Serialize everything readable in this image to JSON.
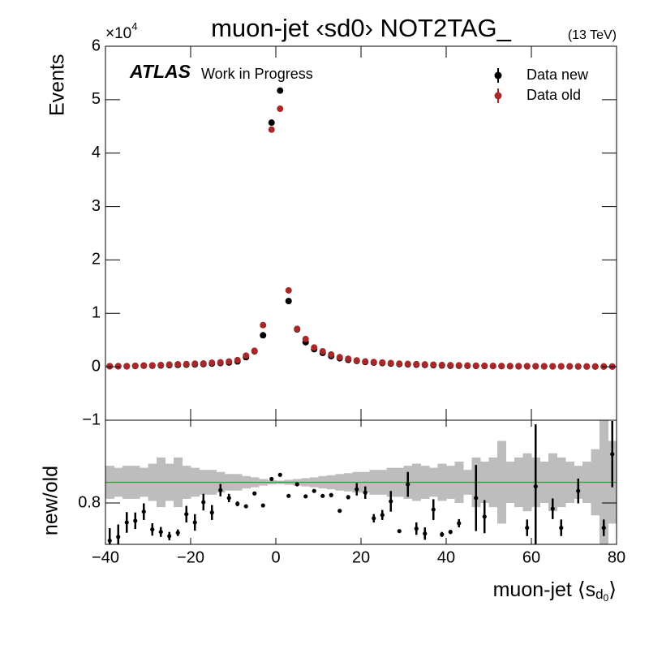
{
  "chart_data": [
    {
      "type": "scatter",
      "title": "muon-jet ‹sd0› NOT2TAG_",
      "energy_label": "(13 TeV)",
      "experiment": "ATLAS",
      "status": "Work in Progress",
      "y_label": "Events",
      "y_multiplier": {
        "base": "×10",
        "exponent": "4"
      },
      "legend": "top-right",
      "x": [
        -39,
        -37,
        -35,
        -33,
        -31,
        -29,
        -27,
        -25,
        -23,
        -21,
        -19,
        -17,
        -15,
        -13,
        -11,
        -9,
        -7,
        -5,
        -3,
        -1,
        1,
        3,
        5,
        7,
        9,
        11,
        13,
        15,
        17,
        19,
        21,
        23,
        25,
        27,
        29,
        31,
        33,
        35,
        37,
        39,
        41,
        43,
        45,
        47,
        49,
        51,
        53,
        55,
        57,
        59,
        61,
        63,
        65,
        67,
        69,
        71,
        73,
        75,
        77,
        79
      ],
      "series": [
        {
          "name": "Data new",
          "color": "#000000",
          "values": [
            0.01,
            0.01,
            0.01,
            0.015,
            0.02,
            0.02,
            0.025,
            0.03,
            0.035,
            0.04,
            0.045,
            0.05,
            0.06,
            0.07,
            0.08,
            0.1,
            0.18,
            0.29,
            0.59,
            4.57,
            5.17,
            1.23,
            0.7,
            0.46,
            0.33,
            0.26,
            0.2,
            0.16,
            0.13,
            0.11,
            0.09,
            0.08,
            0.07,
            0.06,
            0.05,
            0.045,
            0.04,
            0.035,
            0.03,
            0.025,
            0.02,
            0.02,
            0.018,
            0.016,
            0.015,
            0.014,
            0.012,
            0.011,
            0.01,
            0.01,
            0.009,
            0.008,
            0.008,
            0.007,
            0.007,
            0.006,
            0.006,
            0.005,
            0.005,
            0.005
          ]
        },
        {
          "name": "Data old",
          "color": "#a8282a",
          "values": [
            0.012,
            0.013,
            0.013,
            0.02,
            0.025,
            0.027,
            0.034,
            0.042,
            0.048,
            0.052,
            0.06,
            0.062,
            0.077,
            0.084,
            0.099,
            0.125,
            0.21,
            0.3,
            0.78,
            4.44,
            4.83,
            1.43,
            0.71,
            0.52,
            0.36,
            0.29,
            0.23,
            0.18,
            0.15,
            0.12,
            0.1,
            0.09,
            0.08,
            0.07,
            0.06,
            0.055,
            0.05,
            0.045,
            0.04,
            0.035,
            0.03,
            0.028,
            0.025,
            0.022,
            0.02,
            0.018,
            0.016,
            0.015,
            0.014,
            0.013,
            0.012,
            0.011,
            0.01,
            0.01,
            0.009,
            0.008,
            0.008,
            0.007,
            0.007,
            0.006
          ]
        }
      ],
      "xlim": [
        -40,
        80
      ],
      "xticks": [
        -40,
        -20,
        0,
        20,
        40,
        60,
        80
      ],
      "ylim": [
        -1,
        6
      ],
      "yticks": [
        {
          "value": -1,
          "label": "−1"
        },
        0,
        1,
        2,
        3,
        4,
        5,
        6
      ]
    },
    {
      "type": "ratio",
      "y_label": "new/old",
      "x_label": {
        "text": "muon-jet ⟨s",
        "sub": "d",
        "subsub": "0",
        "end": "⟩"
      },
      "x": [
        -39,
        -37,
        -35,
        -33,
        -31,
        -29,
        -27,
        -25,
        -23,
        -21,
        -19,
        -17,
        -15,
        -13,
        -11,
        -9,
        -7,
        -5,
        -3,
        -1,
        1,
        3,
        5,
        7,
        9,
        11,
        13,
        15,
        17,
        19,
        21,
        23,
        25,
        27,
        29,
        31,
        33,
        35,
        37,
        39,
        41,
        43,
        45,
        47,
        49,
        51,
        53,
        55,
        57,
        59,
        61,
        63,
        65,
        67,
        69,
        71,
        73,
        75,
        77,
        79
      ],
      "values": [
        0.709,
        0.718,
        0.753,
        0.757,
        0.779,
        0.736,
        0.73,
        0.72,
        0.728,
        0.773,
        0.753,
        0.802,
        0.777,
        0.831,
        0.812,
        0.798,
        0.792,
        0.823,
        0.794,
        0.858,
        0.868,
        0.817,
        0.845,
        0.816,
        0.829,
        0.817,
        0.819,
        0.781,
        0.814,
        0.833,
        0.825,
        0.763,
        0.771,
        0.804,
        0.732,
        0.845,
        0.738,
        0.726,
        0.784,
        0.724,
        0.73,
        0.751,
        null,
        0.812,
        0.767,
        null,
        null,
        null,
        null,
        0.74,
        0.84,
        null,
        0.786,
        0.74,
        null,
        0.829,
        null,
        null,
        0.74,
        0.918
      ],
      "errors": [
        0.03,
        0.03,
        0.025,
        0.02,
        0.02,
        0.015,
        0.012,
        0.01,
        0.008,
        0.02,
        0.02,
        0.02,
        0.018,
        0.015,
        0.01,
        0.006,
        0.004,
        0.004,
        0.003,
        0.002,
        0.002,
        0.002,
        0.003,
        0.003,
        0.004,
        0.004,
        0.005,
        0.003,
        0.005,
        0.015,
        0.015,
        0.01,
        0.012,
        0.025,
        0.004,
        0.03,
        0.015,
        0.015,
        0.025,
        0.006,
        0.005,
        0.01,
        null,
        0.08,
        0.04,
        null,
        null,
        null,
        null,
        0.02,
        0.15,
        null,
        0.025,
        0.02,
        null,
        0.03,
        null,
        null,
        0.02,
        0.08
      ],
      "color": "#000000",
      "band": [
        0.04,
        0.035,
        0.04,
        0.04,
        0.035,
        0.045,
        0.06,
        0.045,
        0.06,
        0.04,
        0.035,
        0.03,
        0.03,
        0.025,
        0.02,
        0.02,
        0.015,
        0.012,
        0.008,
        0.005,
        0.004,
        0.006,
        0.008,
        0.01,
        0.012,
        0.015,
        0.017,
        0.02,
        0.022,
        0.025,
        0.025,
        0.03,
        0.03,
        0.035,
        0.035,
        0.04,
        0.045,
        0.04,
        0.035,
        0.045,
        0.04,
        0.05,
        0.03,
        0.06,
        0.05,
        0.06,
        0.1,
        0.05,
        0.06,
        0.07,
        0.06,
        0.05,
        0.07,
        0.06,
        0.05,
        0.04,
        0.05,
        0.08,
        0.15,
        0.1
      ],
      "band_color": "#bdbdbd",
      "reference_line": 0.85,
      "reference_color": "#33a02c",
      "xlim": [
        -40,
        80
      ],
      "xticks": [
        {
          "value": -40,
          "label": "−40"
        },
        {
          "value": -20,
          "label": "−20"
        },
        0,
        20,
        40,
        60,
        80
      ],
      "ylim": [
        0.7,
        1.0
      ],
      "yticks": [
        0.8
      ]
    }
  ]
}
